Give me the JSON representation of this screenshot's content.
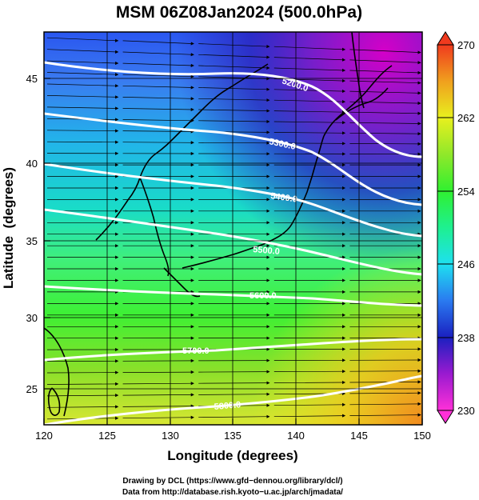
{
  "title": "MSM 06Z08Jan2024 (500.0hPa)",
  "x_axis": {
    "label": "Longitude (degrees)",
    "range": [
      120,
      150
    ],
    "ticks": [
      "120",
      "125",
      "130",
      "135",
      "140",
      "145",
      "150"
    ]
  },
  "y_axis": {
    "label": "Latitude  (degrees)",
    "range": [
      22.5,
      47.8
    ],
    "ticks": [
      "25",
      "30",
      "35",
      "40",
      "45"
    ]
  },
  "colorbar": {
    "range": [
      230,
      270
    ],
    "ticks": [
      "230",
      "238",
      "246",
      "254",
      "262",
      "270"
    ]
  },
  "contours": [
    {
      "label": "5200.0",
      "value": 5200
    },
    {
      "label": "5300.0",
      "value": 5300
    },
    {
      "label": "5400.0",
      "value": 5400
    },
    {
      "label": "5500.0",
      "value": 5500
    },
    {
      "label": "5600.0",
      "value": 5600
    },
    {
      "label": "5700.0",
      "value": 5700
    },
    {
      "label": "5800.0",
      "value": 5800
    }
  ],
  "credits": [
    "Drawing by DCL (https://www.gfd−dennou.org/library/dcl/)",
    "Data from http://database.rish.kyoto−u.ac.jp/arch/jmadata/"
  ],
  "chart_data": {
    "type": "map",
    "field": "temperature (K) at 500.0hPa with geopotential height contours and wind streamlines",
    "color_range": [
      230,
      270
    ],
    "contour_values": [
      5200,
      5300,
      5400,
      5500,
      5600,
      5700,
      5800
    ],
    "xlim": [
      120,
      150
    ],
    "ylim": [
      22.5,
      47.8
    ],
    "grid": true
  }
}
